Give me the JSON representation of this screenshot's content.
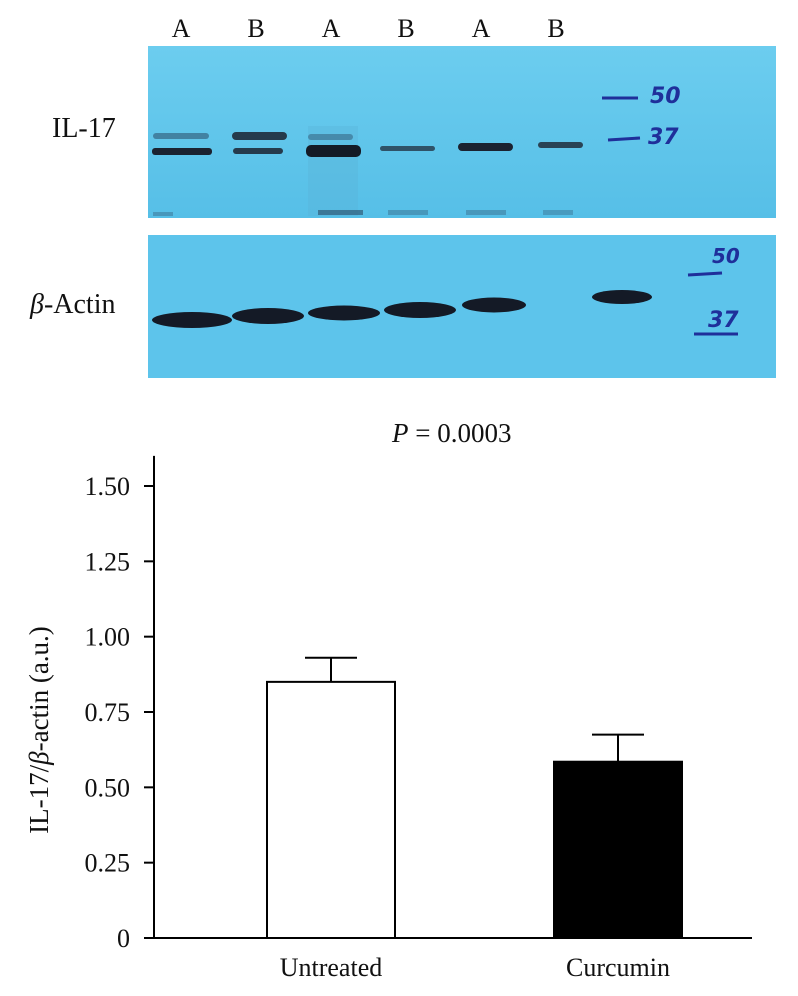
{
  "blot": {
    "lane_labels": [
      "A",
      "B",
      "A",
      "B",
      "A",
      "B"
    ],
    "il17_label": "IL-17",
    "actin_symbol": "β",
    "actin_label": "-Actin",
    "markers_top": [
      "50",
      "37"
    ],
    "markers_bottom": [
      "50",
      "37"
    ],
    "colors": {
      "membrane": "#62c8ee",
      "band": "#1b2230",
      "marker_ink": "#1f2f9a"
    }
  },
  "stats": {
    "p_label": "P",
    "p_text": " = 0.0003"
  },
  "chart_data": {
    "type": "bar",
    "categories": [
      "Untreated",
      "Curcumin"
    ],
    "values": [
      0.85,
      0.585
    ],
    "errors": [
      0.08,
      0.09
    ],
    "bar_colors": [
      "#ffffff",
      "#000000"
    ],
    "ylabel_parts": [
      "IL-17/",
      "β",
      "-actin (a.u.)"
    ],
    "ylim": [
      0,
      1.6
    ],
    "yticks": [
      0,
      0.25,
      0.5,
      0.75,
      1.0,
      1.25,
      1.5
    ],
    "ytick_labels": [
      "0",
      "0.25",
      "0.50",
      "0.75",
      "1.00",
      "1.25",
      "1.50"
    ],
    "grid": false
  }
}
